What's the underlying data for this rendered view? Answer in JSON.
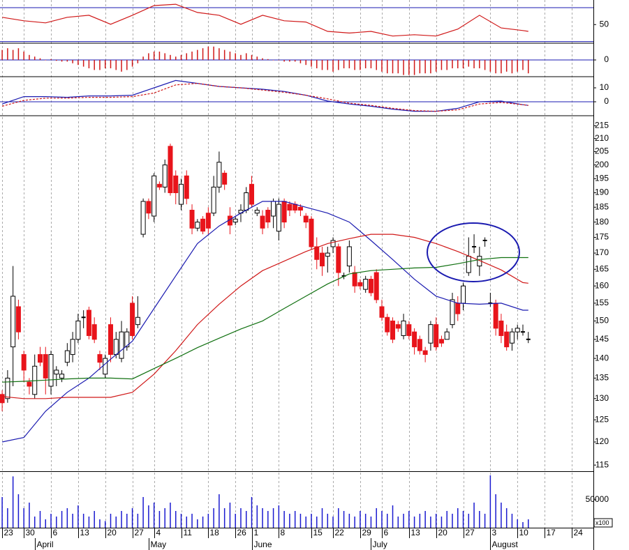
{
  "chart_data": [
    {
      "type": "line",
      "xlim": [
        -0.4,
        109
      ],
      "ylim": [
        28,
        79
      ],
      "yticks": [
        50
      ],
      "hlines": [
        70,
        30
      ],
      "hline_color": "#1a1ab0",
      "series": [
        {
          "color": "#d01818",
          "x": [
            0,
            4,
            8,
            12,
            16,
            20,
            24,
            28,
            32,
            36,
            40,
            44,
            48,
            52,
            56,
            60,
            64,
            68,
            72,
            76,
            80,
            84,
            88,
            92,
            96,
            97
          ],
          "values": [
            58.6,
            54.5,
            52,
            58.6,
            61,
            50.4,
            61,
            72.4,
            74,
            64.3,
            61,
            50.4,
            61,
            54.5,
            53,
            42,
            40,
            42,
            36.5,
            38,
            36.5,
            44.7,
            61,
            46,
            43,
            42
          ]
        }
      ]
    },
    {
      "type": "bar",
      "xlim": [
        -0.4,
        109
      ],
      "ylim": [
        -1,
        1
      ],
      "yticks": [
        0
      ],
      "hlines": [
        0
      ],
      "hline_color": "#1a1ab0",
      "color": "#d01818",
      "values": [
        0.6,
        0.7,
        0.6,
        0.7,
        0.5,
        0.3,
        0.2,
        0.1,
        0,
        0.05,
        -0.05,
        -0.1,
        -0.1,
        -0.2,
        -0.3,
        -0.4,
        -0.5,
        -0.6,
        -0.6,
        -0.5,
        -0.5,
        -0.6,
        -0.7,
        -0.6,
        -0.4,
        -0.2,
        0.2,
        0.4,
        0.5,
        0.5,
        0.4,
        0.3,
        0.2,
        0.3,
        0.4,
        0.5,
        0.6,
        0.7,
        0.8,
        0.8,
        0.7,
        0.6,
        0.5,
        0.4,
        0.3,
        0.4,
        0.3,
        0.2,
        0.1,
        0.05,
        0,
        0,
        -0.1,
        -0.1,
        -0.1,
        -0.2,
        -0.3,
        -0.4,
        -0.5,
        -0.6,
        -0.6,
        -0.7,
        -0.6,
        -0.5,
        -0.5,
        -0.6,
        -0.6,
        -0.5,
        -0.5,
        -0.6,
        -0.7,
        -0.8,
        -0.8,
        -0.8,
        -0.9,
        -0.9,
        -0.9,
        -0.8,
        -0.8,
        -0.8,
        -0.7,
        -0.6,
        -0.6,
        -0.5,
        -0.5,
        -0.5,
        -0.4,
        -0.5,
        -0.5,
        -0.6,
        -0.7,
        -0.8,
        -0.8,
        -0.7,
        -0.8,
        -0.7,
        -0.6,
        -0.8
      ]
    },
    {
      "type": "line",
      "xlim": [
        -0.4,
        109
      ],
      "ylim": [
        -10,
        18
      ],
      "yticks": [
        0,
        10
      ],
      "hlines": [
        0
      ],
      "hline_color": "#1a1ab0",
      "series": [
        {
          "color": "#1a1ab0",
          "x": [
            0,
            4,
            8,
            12,
            16,
            20,
            24,
            28,
            32,
            36,
            40,
            44,
            48,
            52,
            56,
            60,
            64,
            68,
            72,
            76,
            80,
            84,
            88,
            92,
            96,
            97
          ],
          "values": [
            -1.6,
            3.7,
            3.7,
            3.2,
            4.2,
            4.2,
            4.7,
            10,
            15.3,
            13.2,
            11,
            10,
            9,
            7.4,
            4.7,
            0.5,
            -1.6,
            -3.2,
            -5.3,
            -6.8,
            -6.8,
            -4.7,
            0,
            0.5,
            -2.1,
            -2.6
          ]
        },
        {
          "color": "#d01818",
          "dash": true,
          "x": [
            0,
            4,
            8,
            12,
            16,
            20,
            24,
            28,
            32,
            36,
            40,
            44,
            48,
            52,
            56,
            60,
            64,
            68,
            72,
            76,
            80,
            84,
            88,
            92,
            96,
            97
          ],
          "values": [
            -3.2,
            1,
            2.6,
            2.6,
            3.2,
            3.2,
            3.7,
            6.3,
            12.1,
            13.2,
            11,
            10,
            8.4,
            6.8,
            4.7,
            2.1,
            -1,
            -2.6,
            -4.7,
            -6.3,
            -6.8,
            -5.8,
            -1.6,
            -0.5,
            -2.1,
            -2.6
          ]
        }
      ]
    },
    {
      "type": "candlestick",
      "log": true,
      "xlim": [
        -0.4,
        109
      ],
      "ylim": [
        113.7,
        219
      ],
      "yticks": [
        115,
        120,
        125,
        130,
        135,
        140,
        145,
        150,
        155,
        160,
        165,
        170,
        175,
        180,
        185,
        190,
        195,
        200,
        205,
        210,
        215
      ],
      "up_color": "#ffffff",
      "down_color": "#e8141b",
      "open": [
        131,
        130,
        143,
        154,
        141,
        134,
        131,
        141,
        141,
        133,
        136,
        135,
        139,
        141,
        145,
        151,
        153,
        149,
        141,
        136,
        149,
        141,
        140,
        143,
        155,
        149,
        176,
        187,
        182,
        193,
        192,
        207,
        196,
        186,
        196,
        184,
        178,
        181,
        183,
        183,
        192,
        197,
        182,
        180,
        183,
        184,
        193,
        183,
        182,
        184,
        182,
        177,
        187,
        186,
        186,
        185,
        182,
        181,
        172,
        170,
        169,
        172,
        172,
        163,
        166,
        164,
        161,
        159,
        162,
        164,
        154,
        151,
        150,
        149,
        146,
        149,
        147,
        145,
        142,
        144,
        149,
        145,
        145,
        149,
        155,
        155,
        164,
        172,
        166,
        174,
        155,
        155,
        150,
        147,
        144,
        147,
        147,
        145
      ],
      "high": [
        132,
        137,
        166,
        156,
        142,
        135,
        141,
        143,
        143,
        142,
        138,
        137,
        144,
        147,
        152,
        153,
        154,
        151,
        142,
        141,
        151,
        147,
        150,
        148,
        157,
        157,
        188,
        188,
        197,
        194,
        202,
        208,
        198,
        195,
        198,
        186,
        181,
        182,
        185,
        196,
        205,
        198,
        185,
        182,
        186,
        192,
        196,
        185,
        184,
        185,
        188,
        188,
        188,
        187,
        187,
        186,
        183,
        182,
        175,
        172,
        172,
        175,
        173,
        164,
        174,
        166,
        162,
        163,
        163,
        165,
        156,
        152,
        151,
        150,
        152,
        150,
        148,
        146,
        143,
        150,
        151,
        146,
        148,
        158,
        157,
        161,
        175,
        176,
        172,
        175,
        158,
        156,
        152,
        149,
        148,
        149,
        149,
        147
      ],
      "low": [
        127,
        129,
        133,
        145,
        134,
        131,
        130,
        138,
        131,
        131,
        133,
        134,
        138,
        139,
        144,
        148,
        145,
        144,
        137,
        135,
        139,
        140,
        139,
        142,
        145,
        148,
        175,
        181,
        180,
        191,
        190,
        189,
        186,
        184,
        186,
        176,
        177,
        176,
        176,
        182,
        190,
        191,
        176,
        179,
        180,
        183,
        185,
        182,
        176,
        178,
        178,
        174,
        178,
        182,
        183,
        182,
        178,
        171,
        165,
        163,
        164,
        170,
        160,
        162,
        164,
        158,
        159,
        158,
        157,
        155,
        150,
        146,
        144,
        147,
        145,
        145,
        141,
        141,
        139,
        142,
        142,
        143,
        145,
        148,
        150,
        153,
        163,
        170,
        163,
        172,
        154,
        146,
        144,
        142,
        142,
        145,
        146,
        144
      ],
      "close": [
        129,
        135,
        157,
        147,
        137,
        133,
        138,
        139,
        135,
        141,
        137,
        136,
        142,
        145,
        150,
        151,
        146,
        145,
        139,
        140,
        141,
        145,
        147,
        147,
        146,
        151,
        187,
        183,
        196,
        192,
        200,
        190,
        190,
        193,
        188,
        178,
        180,
        177,
        178,
        192,
        201,
        193,
        179,
        181,
        184,
        190,
        186,
        184,
        178,
        180,
        187,
        186,
        180,
        184,
        184,
        184,
        180,
        172,
        168,
        166,
        170,
        174,
        164,
        163,
        172,
        160,
        160,
        162,
        158,
        156,
        151,
        147,
        145,
        148,
        150,
        146,
        143,
        142,
        141,
        149,
        143,
        144,
        147,
        156,
        152,
        160,
        169,
        172,
        169,
        174,
        155,
        148,
        146,
        143,
        147,
        148,
        147,
        145
      ],
      "overlays": [
        {
          "color": "#1a1ab0",
          "x": [
            0,
            4,
            8,
            12,
            16,
            20,
            24,
            28,
            32,
            36,
            40,
            44,
            48,
            52,
            56,
            60,
            64,
            68,
            72,
            76,
            80,
            84,
            88,
            92,
            96,
            97
          ],
          "values": [
            120,
            121,
            127,
            131.5,
            135,
            139.8,
            144.5,
            153.5,
            163,
            173,
            178.7,
            183,
            187,
            187,
            185,
            183,
            180,
            174,
            168,
            162,
            157,
            155,
            154.7,
            155,
            153,
            153
          ]
        },
        {
          "color": "#d01818",
          "x": [
            0,
            4,
            8,
            12,
            16,
            20,
            24,
            28,
            32,
            36,
            40,
            44,
            48,
            52,
            56,
            60,
            64,
            68,
            72,
            76,
            80,
            84,
            88,
            92,
            96,
            97
          ],
          "values": [
            130.5,
            130,
            130,
            130.3,
            130.3,
            130.3,
            131.5,
            136,
            142,
            149,
            154.7,
            160,
            164.6,
            167.5,
            170.5,
            173,
            174.6,
            176,
            176,
            175,
            173,
            170.5,
            167.7,
            164.8,
            161,
            160.8
          ]
        },
        {
          "color": "#107010",
          "x": [
            0,
            4,
            8,
            12,
            16,
            20,
            24,
            28,
            32,
            36,
            40,
            44,
            48,
            52,
            56,
            60,
            64,
            68,
            72,
            76,
            80,
            84,
            88,
            92,
            96,
            97
          ],
          "values": [
            134,
            134.2,
            134.5,
            134.8,
            135,
            135,
            134.8,
            137.4,
            140,
            142.8,
            145.3,
            147.8,
            150,
            153.5,
            157,
            160.6,
            163.6,
            164.6,
            165,
            165.4,
            165.6,
            166.7,
            168,
            168.6,
            168.6,
            168.6
          ]
        }
      ]
    },
    {
      "type": "bar",
      "xlim": [
        -0.4,
        109
      ],
      "ylim": [
        0,
        100000
      ],
      "yticks": [
        50000
      ],
      "color": "#1a1ad0",
      "unit_label": "x100",
      "values": [
        55000,
        35000,
        92000,
        60000,
        35000,
        45000,
        20000,
        30000,
        15000,
        25000,
        20000,
        30000,
        35000,
        25000,
        40000,
        25000,
        20000,
        30000,
        15000,
        12000,
        25000,
        20000,
        30000,
        25000,
        35000,
        25000,
        55000,
        40000,
        45000,
        30000,
        35000,
        45000,
        30000,
        25000,
        20000,
        25000,
        15000,
        20000,
        25000,
        35000,
        60000,
        35000,
        45000,
        25000,
        35000,
        30000,
        55000,
        40000,
        35000,
        30000,
        35000,
        40000,
        30000,
        25000,
        30000,
        25000,
        20000,
        25000,
        20000,
        35000,
        25000,
        20000,
        35000,
        30000,
        25000,
        20000,
        30000,
        25000,
        20000,
        35000,
        30000,
        25000,
        40000,
        20000,
        25000,
        30000,
        20000,
        25000,
        30000,
        20000,
        25000,
        20000,
        30000,
        25000,
        35000,
        30000,
        25000,
        45000,
        30000,
        25000,
        94000,
        60000,
        45000,
        35000,
        25000,
        15000,
        10000,
        15000
      ],
      "xticks": [
        {
          "value": 0,
          "label": "23"
        },
        {
          "value": 4,
          "label": "30"
        },
        {
          "value": 9,
          "label": "6"
        },
        {
          "value": 14,
          "label": "13"
        },
        {
          "value": 19,
          "label": "20"
        },
        {
          "value": 24,
          "label": "27"
        },
        {
          "value": 28,
          "label": "4"
        },
        {
          "value": 33,
          "label": "11"
        },
        {
          "value": 38,
          "label": "18"
        },
        {
          "value": 43,
          "label": "26"
        },
        {
          "value": 46,
          "label": "1"
        },
        {
          "value": 51,
          "label": "8"
        },
        {
          "value": 57,
          "label": "15"
        },
        {
          "value": 61,
          "label": "22"
        },
        {
          "value": 66,
          "label": "29"
        },
        {
          "value": 70,
          "label": "6"
        },
        {
          "value": 75,
          "label": "13"
        },
        {
          "value": 80,
          "label": "20"
        },
        {
          "value": 85,
          "label": "27"
        },
        {
          "value": 90,
          "label": "3"
        },
        {
          "value": 95,
          "label": "10"
        },
        {
          "value": 100,
          "label": "17"
        },
        {
          "value": 105,
          "label": "24"
        }
      ],
      "month_ticks": [
        {
          "value": 6,
          "label": "April"
        },
        {
          "value": 27,
          "label": "May"
        },
        {
          "value": 46,
          "label": "June"
        },
        {
          "value": 68,
          "label": "July"
        },
        {
          "value": 90,
          "label": "August"
        }
      ]
    }
  ]
}
